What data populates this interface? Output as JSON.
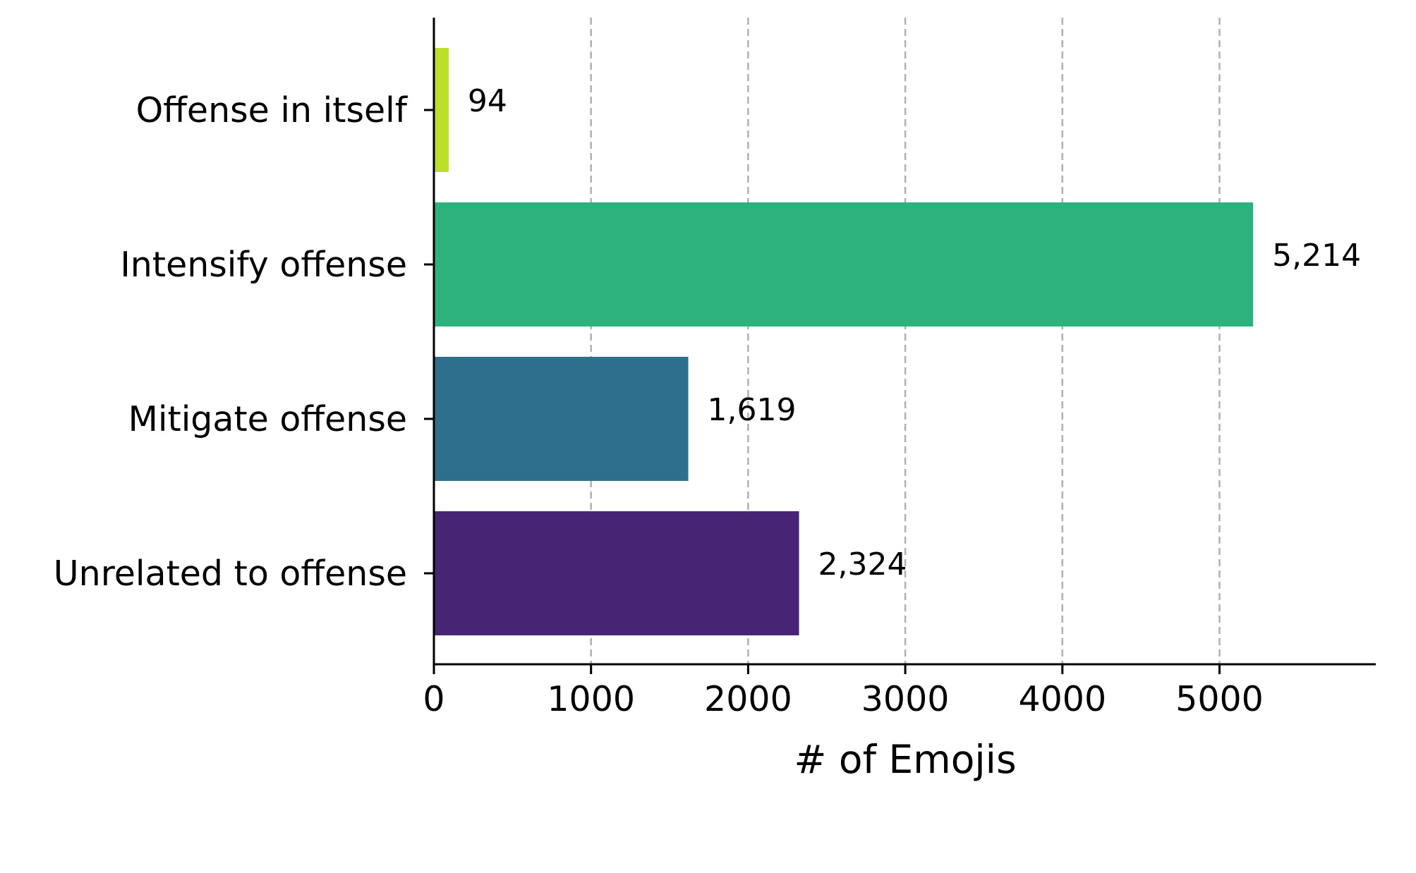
{
  "chart_data": {
    "type": "bar",
    "orientation": "horizontal",
    "categories": [
      "Offense in itself",
      "Intensify offense",
      "Mitigate offense",
      "Unrelated to offense"
    ],
    "values": [
      94,
      5214,
      1619,
      2324
    ],
    "value_labels": [
      "94",
      "5,214",
      "1,619",
      "2,324"
    ],
    "colors": [
      "#bcdf27",
      "#2db27d",
      "#2e6f8e",
      "#482475"
    ],
    "title": "",
    "xlabel": "# of Emojis",
    "ylabel": "",
    "xlim": [
      0,
      6000
    ],
    "xticks": [
      0,
      1000,
      2000,
      3000,
      4000,
      5000
    ],
    "xtick_labels": [
      "0",
      "1000",
      "2000",
      "3000",
      "4000",
      "5000"
    ],
    "grid": "x, dashed",
    "legend": "none"
  }
}
